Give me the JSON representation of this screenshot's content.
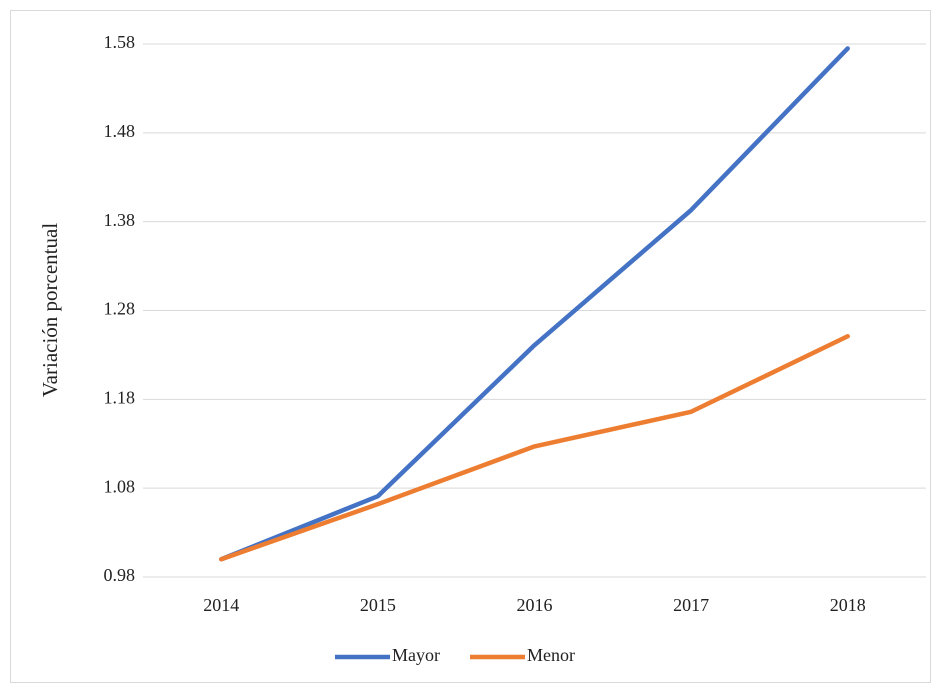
{
  "chart_data": {
    "type": "line",
    "y_label": "Variación porcentual",
    "categories": [
      "2014",
      "2015",
      "2016",
      "2017",
      "2018"
    ],
    "series": [
      {
        "name": "Mayor",
        "color": "#4472c4",
        "values": [
          1.0,
          1.071,
          1.241,
          1.393,
          1.575
        ]
      },
      {
        "name": "Menor",
        "color": "#ed7d31",
        "values": [
          1.0,
          1.062,
          1.127,
          1.166,
          1.251
        ]
      }
    ],
    "ylim": [
      0.98,
      1.58
    ],
    "yticks": [
      0.98,
      1.08,
      1.18,
      1.28,
      1.38,
      1.48,
      1.58
    ],
    "grid": true,
    "legend": "bottom"
  }
}
